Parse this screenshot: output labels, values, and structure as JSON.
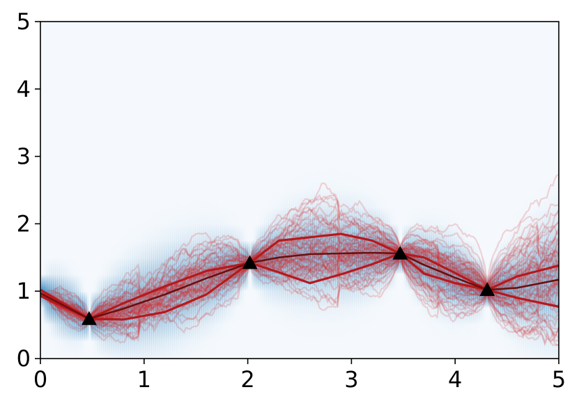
{
  "chart_data": {
    "type": "line",
    "title": "",
    "xlabel": "",
    "ylabel": "",
    "xlim": [
      0,
      5
    ],
    "ylim": [
      0,
      5
    ],
    "xticks": [
      "0",
      "1",
      "2",
      "3",
      "4",
      "5"
    ],
    "yticks": [
      "0",
      "1",
      "2",
      "3",
      "4",
      "5"
    ],
    "grid": false,
    "legend": "none",
    "colors": {
      "density": "#1f77b4",
      "paths": "#d62728",
      "median": "#6b0f0f",
      "observations": "#000000"
    },
    "observations": [
      {
        "x": 0.47,
        "y": 0.59
      },
      {
        "x": 2.02,
        "y": 1.42
      },
      {
        "x": 3.47,
        "y": 1.56
      },
      {
        "x": 4.31,
        "y": 1.02
      }
    ],
    "series": [
      {
        "role": "median",
        "x": [
          0,
          0.47,
          0.8,
          1.2,
          1.6,
          2.02,
          2.3,
          2.6,
          2.9,
          3.2,
          3.47,
          3.7,
          4.0,
          4.31,
          4.6,
          5.0
        ],
        "y": [
          0.97,
          0.59,
          0.74,
          0.95,
          1.19,
          1.42,
          1.5,
          1.55,
          1.56,
          1.57,
          1.56,
          1.39,
          1.2,
          1.02,
          1.05,
          1.17
        ]
      },
      {
        "role": "upper-quantile",
        "x": [
          0,
          0.47,
          0.8,
          1.2,
          1.6,
          2.02,
          2.3,
          2.6,
          2.9,
          3.2,
          3.47,
          3.7,
          4.0,
          4.31,
          4.6,
          5.0
        ],
        "y": [
          1.02,
          0.59,
          0.82,
          1.07,
          1.3,
          1.42,
          1.75,
          1.8,
          1.85,
          1.75,
          1.56,
          1.5,
          1.27,
          1.02,
          1.22,
          1.38
        ]
      },
      {
        "role": "lower-quantile",
        "x": [
          0,
          0.47,
          0.8,
          1.2,
          1.6,
          2.02,
          2.3,
          2.6,
          2.9,
          3.2,
          3.47,
          3.7,
          4.0,
          4.31,
          4.6,
          5.0
        ],
        "y": [
          0.93,
          0.59,
          0.58,
          0.69,
          0.95,
          1.42,
          1.28,
          1.12,
          1.25,
          1.4,
          1.56,
          1.26,
          1.12,
          1.02,
          0.9,
          0.77
        ]
      }
    ]
  }
}
